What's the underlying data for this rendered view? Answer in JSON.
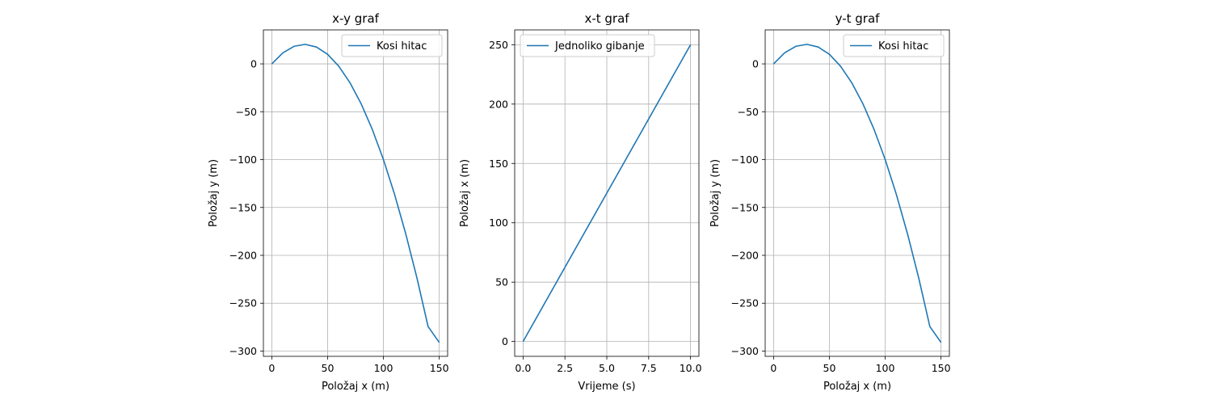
{
  "chart_data": [
    {
      "type": "line",
      "title": "x-y graf",
      "xlabel": "Položaj x (m)",
      "ylabel": "Položaj y (m)",
      "xlim": [
        -7.5,
        157.5
      ],
      "ylim": [
        -305.5,
        35.5
      ],
      "xticks": [
        0,
        50,
        100,
        150
      ],
      "xtick_labels": [
        "0",
        "50",
        "100",
        "150"
      ],
      "yticks": [
        0,
        -50,
        -100,
        -150,
        -200,
        -250,
        -300
      ],
      "ytick_labels": [
        "0",
        "−50",
        "−100",
        "−150",
        "−200",
        "−250",
        "−300"
      ],
      "grid": true,
      "legend": "upper-right",
      "color": "#1f77b4",
      "series": [
        {
          "name": "Kosi hitac",
          "x": [
            0,
            10,
            20,
            30,
            40,
            50,
            60,
            70,
            80,
            90,
            100,
            110,
            120,
            130,
            140,
            150
          ],
          "y": [
            0,
            11.6,
            18.4,
            20.4,
            17.6,
            10.0,
            -2.4,
            -19.6,
            -41.6,
            -68.4,
            -100.0,
            -136.4,
            -177.6,
            -223.6,
            -274.4,
            -291.0
          ]
        }
      ]
    },
    {
      "type": "line",
      "title": "x-t graf",
      "xlabel": "Vrijeme (s)",
      "ylabel": "Položaj x (m)",
      "xlim": [
        -0.5,
        10.5
      ],
      "ylim": [
        -12.5,
        262.5
      ],
      "xticks": [
        0,
        2.5,
        5,
        7.5,
        10
      ],
      "xtick_labels": [
        "0.0",
        "2.5",
        "5.0",
        "7.5",
        "10.0"
      ],
      "yticks": [
        0,
        50,
        100,
        150,
        200,
        250
      ],
      "ytick_labels": [
        "0",
        "50",
        "100",
        "150",
        "200",
        "250"
      ],
      "grid": true,
      "legend": "upper-left",
      "color": "#1f77b4",
      "series": [
        {
          "name": "Jednoliko gibanje",
          "x": [
            0,
            10
          ],
          "y": [
            0,
            250
          ]
        }
      ]
    },
    {
      "type": "line",
      "title": "y-t graf",
      "xlabel": "Položaj x (m)",
      "ylabel": "Položaj y (m)",
      "xlim": [
        -7.5,
        157.5
      ],
      "ylim": [
        -305.5,
        35.5
      ],
      "xticks": [
        0,
        50,
        100,
        150
      ],
      "xtick_labels": [
        "0",
        "50",
        "100",
        "150"
      ],
      "yticks": [
        0,
        -50,
        -100,
        -150,
        -200,
        -250,
        -300
      ],
      "ytick_labels": [
        "0",
        "−50",
        "−100",
        "−150",
        "−200",
        "−250",
        "−300"
      ],
      "grid": true,
      "legend": "upper-right",
      "color": "#1f77b4",
      "series": [
        {
          "name": "Kosi hitac",
          "x": [
            0,
            10,
            20,
            30,
            40,
            50,
            60,
            70,
            80,
            90,
            100,
            110,
            120,
            130,
            140,
            150
          ],
          "y": [
            0,
            11.6,
            18.4,
            20.4,
            17.6,
            10.0,
            -2.4,
            -19.6,
            -41.6,
            -68.4,
            -100.0,
            -136.4,
            -177.6,
            -223.6,
            -274.4,
            -291.0
          ]
        }
      ]
    }
  ]
}
